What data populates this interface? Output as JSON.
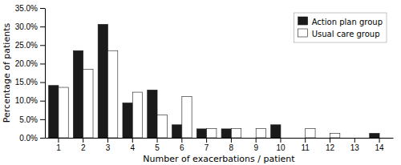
{
  "chart_data": {
    "type": "bar",
    "xlabel": "Number of exacerbations / patient",
    "ylabel": "Percentage of patients",
    "categories": [
      1,
      2,
      3,
      4,
      5,
      6,
      7,
      8,
      9,
      10,
      11,
      12,
      13,
      14
    ],
    "series": [
      {
        "name": "Action plan group",
        "color": "#1a1a1a",
        "values": [
          14.1,
          23.5,
          30.6,
          9.4,
          12.9,
          3.5,
          2.4,
          2.4,
          0.0,
          3.5,
          0.0,
          0.0,
          0.0,
          1.2
        ]
      },
      {
        "name": "Usual care group",
        "color": "#ffffff",
        "values": [
          13.6,
          18.5,
          23.5,
          12.3,
          6.2,
          11.1,
          2.5,
          2.5,
          2.5,
          0.0,
          2.5,
          1.2,
          0.0,
          0.0
        ]
      }
    ],
    "ylim": [
      0,
      35.0
    ],
    "yticks": [
      {
        "value": 0.0,
        "label": "0.0%"
      },
      {
        "value": 5.0,
        "label": "5.0%"
      },
      {
        "value": 10.0,
        "label": "10.0%"
      },
      {
        "value": 15.0,
        "label": "15.0%"
      },
      {
        "value": 20.0,
        "label": "20.0%"
      },
      {
        "value": 25.0,
        "label": "25.0%"
      },
      {
        "value": 30.0,
        "label": "30.0%"
      },
      {
        "value": 35.0,
        "label": "35.0%"
      }
    ],
    "grid": false,
    "legend": "upper right"
  }
}
